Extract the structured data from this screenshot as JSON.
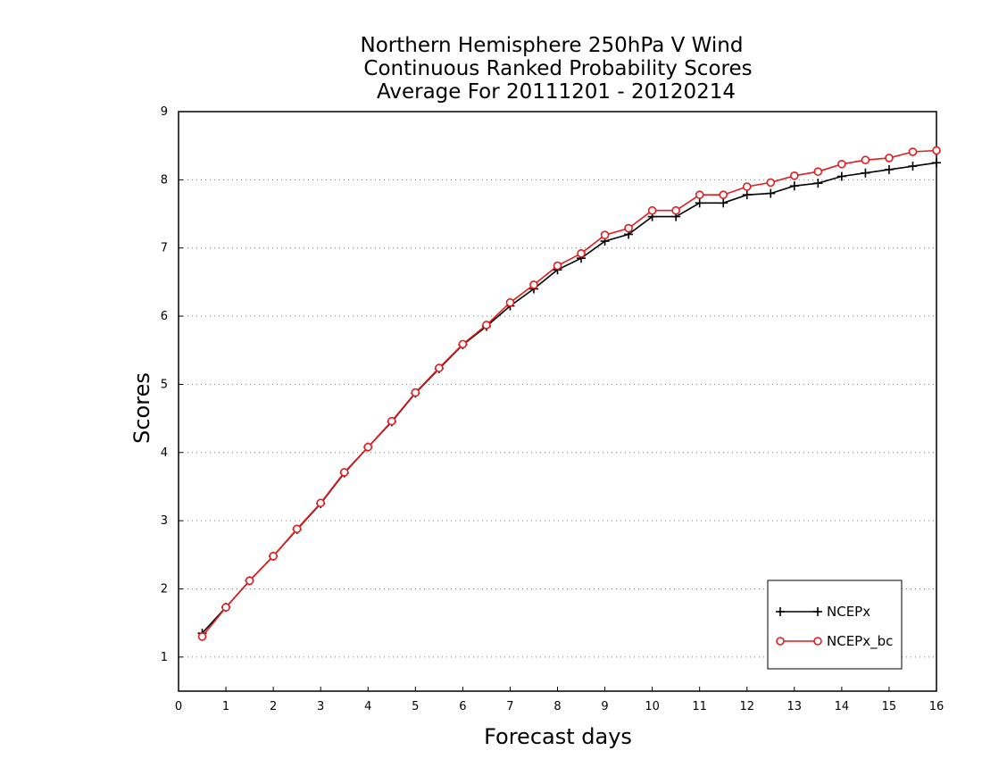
{
  "chart_data": {
    "type": "line",
    "title": [
      "Northern Hemisphere 250hPa V Wind",
      "Continuous Ranked Probability Scores",
      "Average For 20111201 - 20120214"
    ],
    "xlabel": "Forecast days",
    "ylabel": "Scores",
    "xlim": [
      0,
      16
    ],
    "ylim": [
      0.5,
      9
    ],
    "xticks": [
      0,
      1,
      2,
      3,
      4,
      5,
      6,
      7,
      8,
      9,
      10,
      11,
      12,
      13,
      14,
      15,
      16
    ],
    "yticks": [
      1,
      2,
      3,
      4,
      5,
      6,
      7,
      8,
      9
    ],
    "grid": "horizontal dotted",
    "legend_position": "bottom-right",
    "x": [
      0.5,
      1,
      1.5,
      2,
      2.5,
      3,
      3.5,
      4,
      4.5,
      5,
      5.5,
      6,
      6.5,
      7,
      7.5,
      8,
      8.5,
      9,
      9.5,
      10,
      10.5,
      11,
      11.5,
      12,
      12.5,
      13,
      13.5,
      14,
      14.5,
      15,
      15.5,
      16
    ],
    "series": [
      {
        "name": "NCEPx",
        "color": "#000000",
        "marker": "plus",
        "values": [
          1.35,
          1.73,
          2.12,
          2.48,
          2.87,
          3.25,
          3.7,
          4.08,
          4.45,
          4.87,
          5.23,
          5.58,
          5.85,
          6.15,
          6.4,
          6.68,
          6.85,
          7.1,
          7.2,
          7.46,
          7.46,
          7.66,
          7.66,
          7.78,
          7.8,
          7.91,
          7.95,
          8.05,
          8.1,
          8.15,
          8.2,
          8.25
        ]
      },
      {
        "name": "NCEPx_bc",
        "color": "#e41a1c",
        "marker": "circle",
        "values": [
          1.3,
          1.73,
          2.12,
          2.48,
          2.88,
          3.26,
          3.71,
          4.08,
          4.46,
          4.88,
          5.24,
          5.59,
          5.87,
          6.2,
          6.46,
          6.74,
          6.92,
          7.19,
          7.29,
          7.55,
          7.55,
          7.78,
          7.78,
          7.9,
          7.96,
          8.06,
          8.12,
          8.23,
          8.29,
          8.32,
          8.41,
          8.43
        ]
      }
    ]
  }
}
